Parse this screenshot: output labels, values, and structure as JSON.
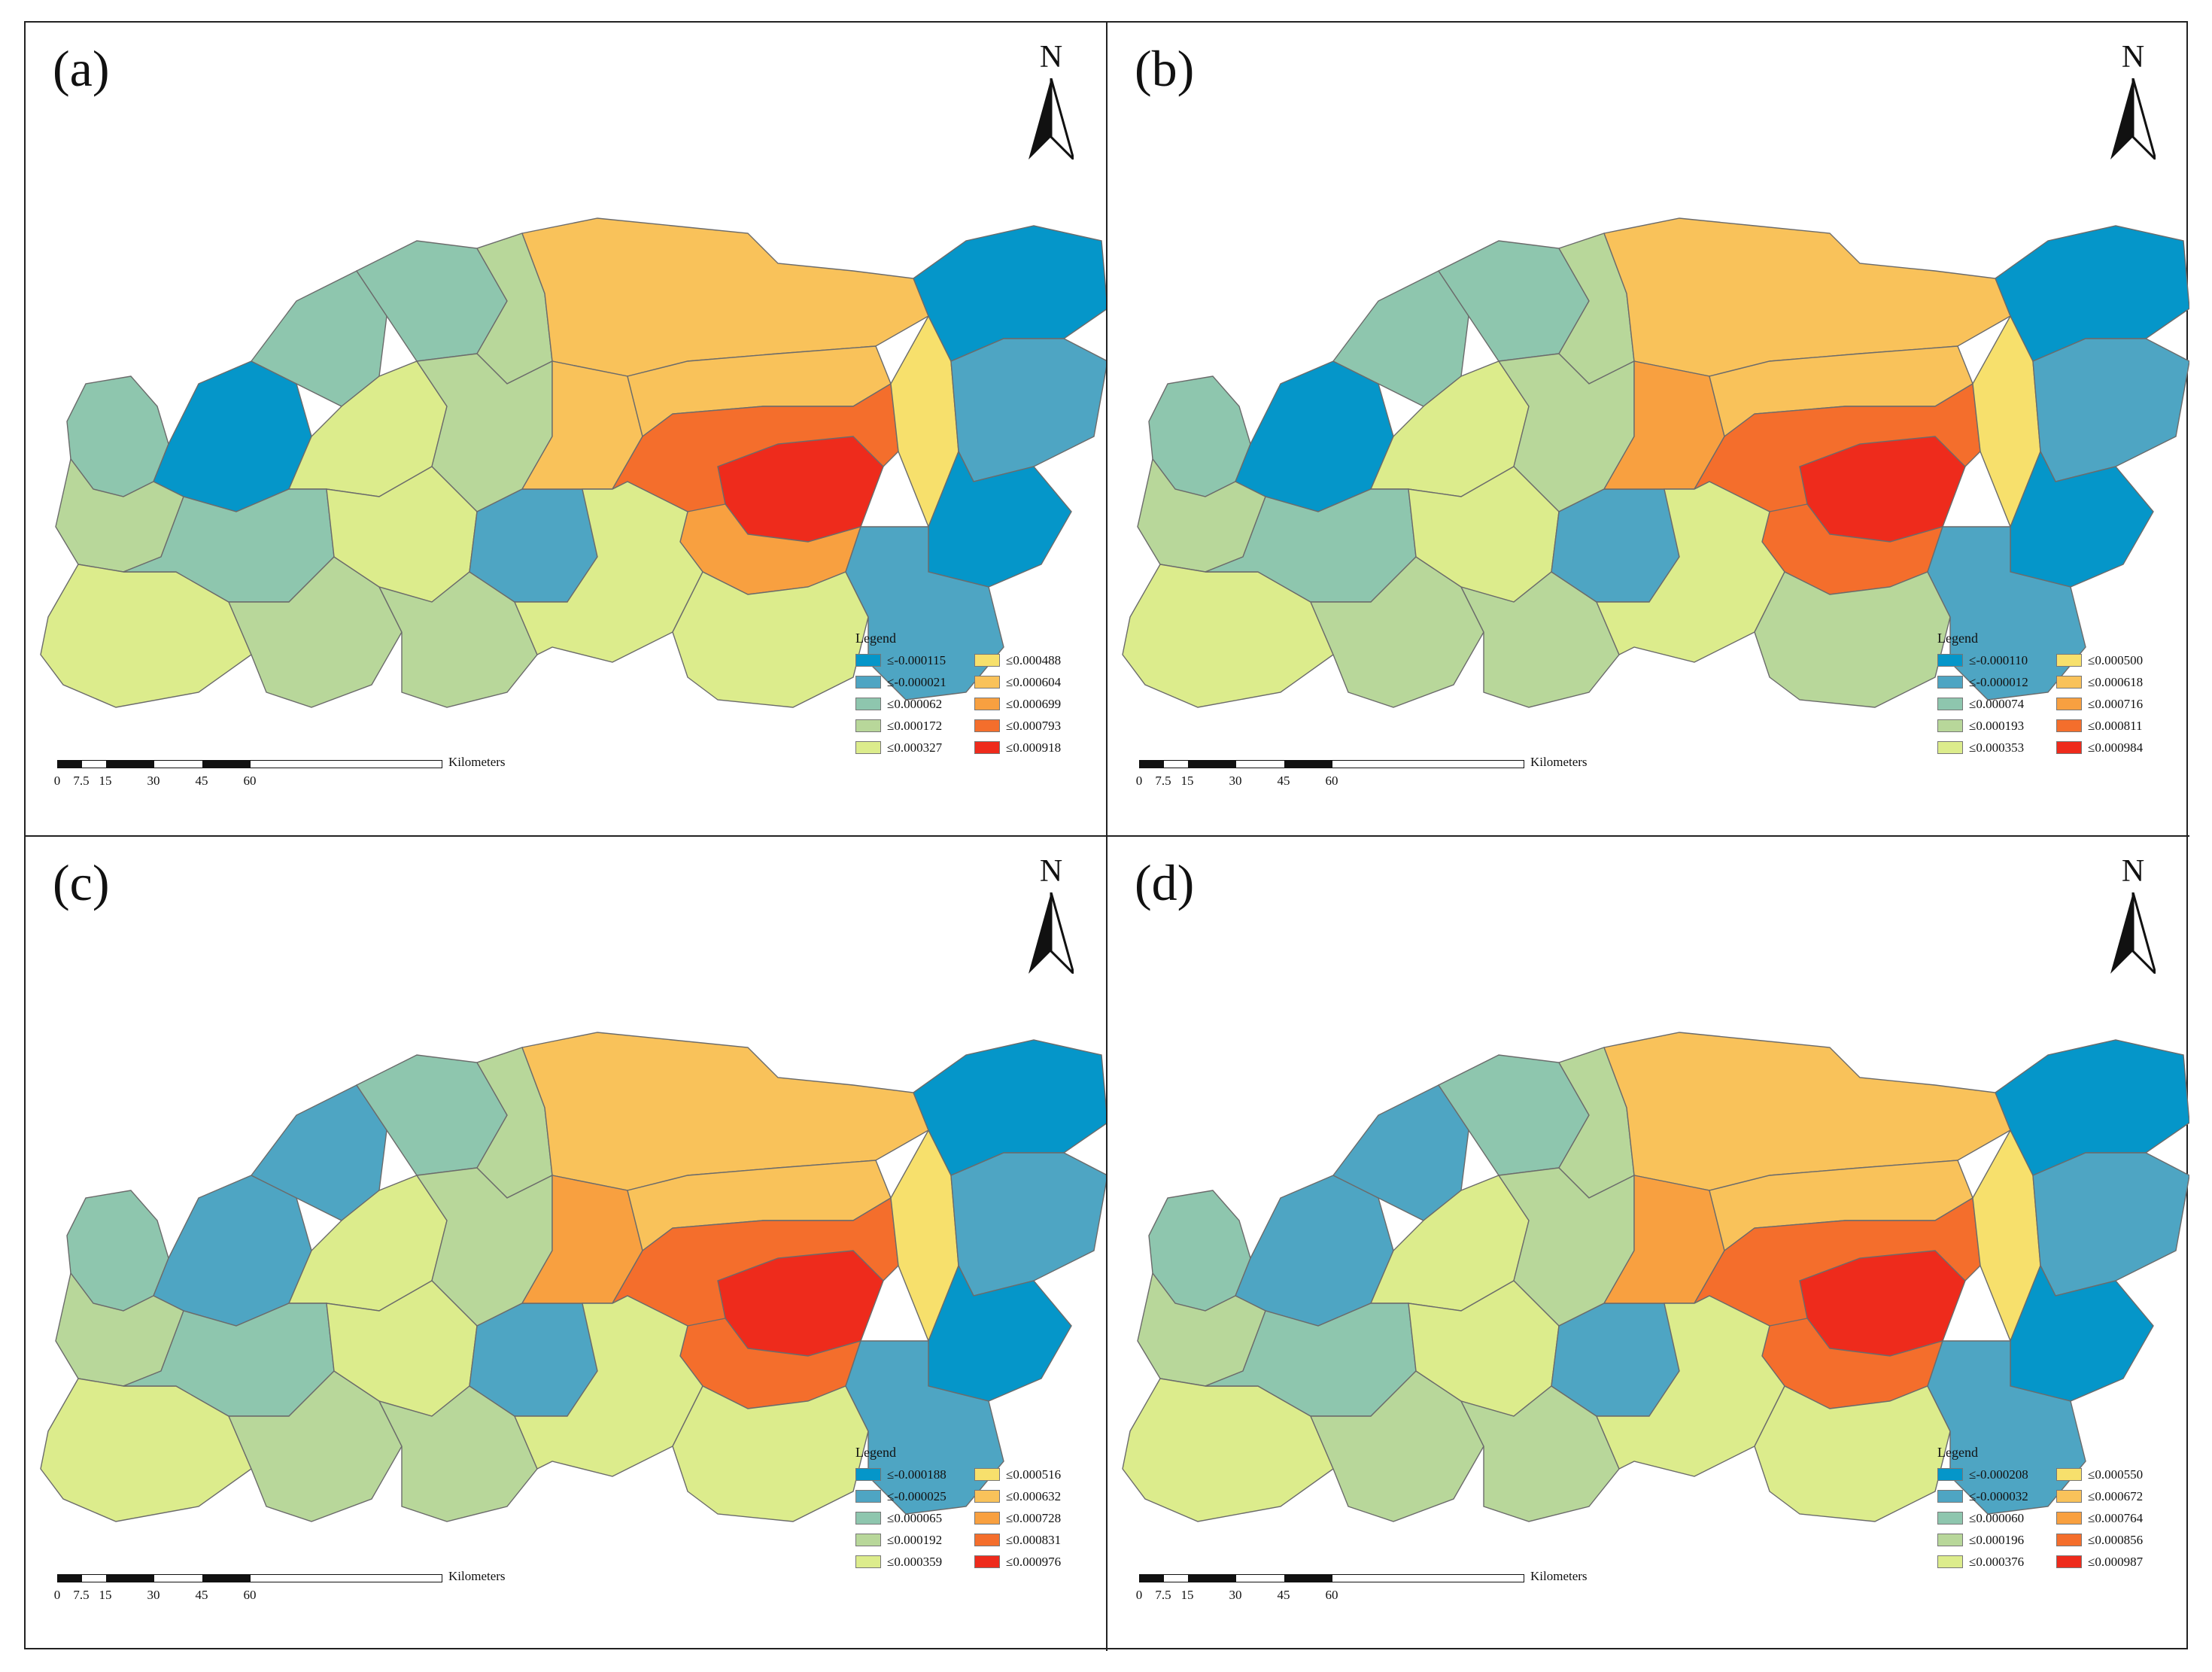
{
  "figure": {
    "north_letter": "N",
    "legend_title": "Legend",
    "scale_unit": "Kilometers",
    "scale_ticks": [
      "0",
      "7.5",
      "15",
      "30",
      "45",
      "60"
    ],
    "colors": [
      "#0596c9",
      "#4ea5c3",
      "#8ec6ae",
      "#b8d79a",
      "#dcec8c",
      "#f7e06c",
      "#f9c25a",
      "#f8a040",
      "#f46e2c",
      "#ee2b1c"
    ],
    "panels": [
      {
        "label": "(a)",
        "legend": [
          "≤-0.000115",
          "≤-0.000021",
          "≤0.000062",
          "≤0.000172",
          "≤0.000327",
          "≤0.000488",
          "≤0.000604",
          "≤0.000699",
          "≤0.000793",
          "≤0.000918"
        ]
      },
      {
        "label": "(b)",
        "legend": [
          "≤-0.000110",
          "≤-0.000012",
          "≤0.000074",
          "≤0.000193",
          "≤0.000353",
          "≤0.000500",
          "≤0.000618",
          "≤0.000716",
          "≤0.000811",
          "≤0.000984"
        ]
      },
      {
        "label": "(c)",
        "legend": [
          "≤-0.000188",
          "≤-0.000025",
          "≤0.000065",
          "≤0.000192",
          "≤0.000359",
          "≤0.000516",
          "≤0.000632",
          "≤0.000728",
          "≤0.000831",
          "≤0.000976"
        ]
      },
      {
        "label": "(d)",
        "legend": [
          "≤-0.000208",
          "≤-0.000032",
          "≤0.000060",
          "≤0.000196",
          "≤0.000376",
          "≤0.000550",
          "≤0.000672",
          "≤0.000764",
          "≤0.000856",
          "≤0.000987"
        ]
      }
    ]
  }
}
